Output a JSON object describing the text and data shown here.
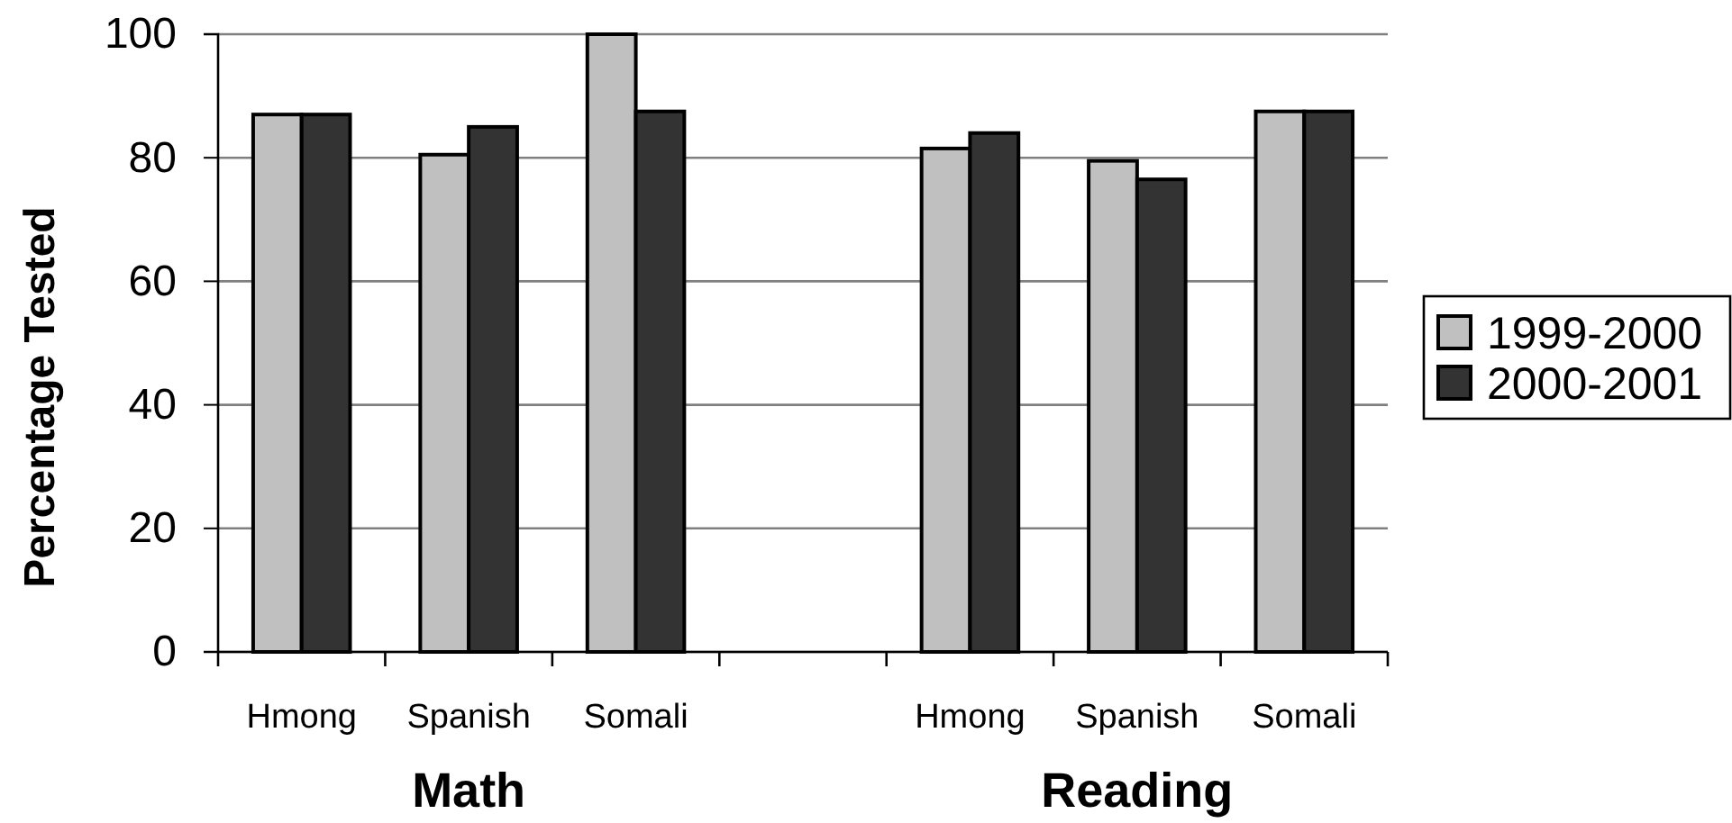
{
  "chart_data": {
    "type": "bar",
    "ylabel": "Percentage Tested",
    "categories": [
      "Hmong",
      "Spanish",
      "Somali",
      null,
      "Hmong",
      "Spanish",
      "Somali"
    ],
    "series": [
      {
        "name": "1999-2000",
        "color": "#c0c0c0",
        "values": [
          87,
          80.5,
          100,
          null,
          81.5,
          79.5,
          87.5
        ]
      },
      {
        "name": "2000-2001",
        "color": "#333333",
        "values": [
          87,
          85,
          87.5,
          null,
          84,
          76.5,
          87.5
        ]
      }
    ],
    "ylim": [
      0,
      100
    ],
    "yticks": [
      0,
      20,
      40,
      60,
      80,
      100
    ],
    "grid": "y",
    "legend": "right",
    "annotations": [
      "Math",
      "Reading"
    ]
  }
}
